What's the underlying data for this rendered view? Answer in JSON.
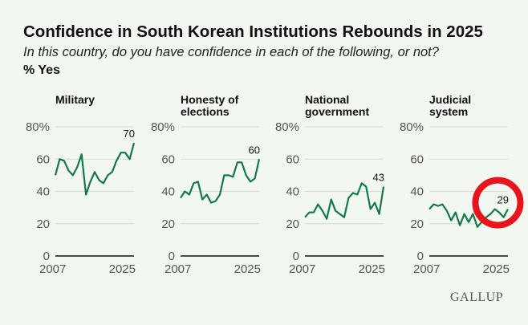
{
  "title": "Confidence in South Korean Institutions Rebounds in 2025",
  "subtitle": "In this country, do you have confidence in each of the following, or not?",
  "unit_label": "% Yes",
  "logo": "GALLUP",
  "colors": {
    "line": "#127a44",
    "background": "#f3f7f1",
    "annotation": "#e8141c"
  },
  "chart_data": [
    {
      "type": "line",
      "title": [
        "Military"
      ],
      "x": [
        2007,
        2008,
        2009,
        2010,
        2011,
        2012,
        2013,
        2014,
        2015,
        2016,
        2017,
        2018,
        2019,
        2020,
        2021,
        2022,
        2023,
        2024,
        2025
      ],
      "values": [
        50,
        60,
        59,
        53,
        50,
        55,
        63,
        38,
        46,
        52,
        47,
        45,
        50,
        52,
        59,
        64,
        64,
        60,
        70
      ],
      "end_label": "70",
      "ylim": [
        0,
        80
      ],
      "yticks": [
        "0",
        "20",
        "40",
        "60",
        "80%"
      ],
      "xticks": [
        "2007",
        "2025"
      ],
      "grid": true
    },
    {
      "type": "line",
      "title": [
        "Honesty of",
        "elections"
      ],
      "x": [
        2007,
        2008,
        2009,
        2010,
        2011,
        2012,
        2013,
        2014,
        2015,
        2016,
        2017,
        2018,
        2019,
        2020,
        2021,
        2022,
        2023,
        2024,
        2025
      ],
      "values": [
        36,
        40,
        38,
        45,
        46,
        35,
        38,
        33,
        34,
        38,
        50,
        50,
        49,
        58,
        58,
        50,
        46,
        48,
        60
      ],
      "end_label": "60",
      "ylim": [
        0,
        80
      ],
      "yticks": [
        "0",
        "20",
        "40",
        "60",
        "80%"
      ],
      "xticks": [
        "2007",
        "2025"
      ],
      "grid": true
    },
    {
      "type": "line",
      "title": [
        "National",
        "government"
      ],
      "x": [
        2007,
        2008,
        2009,
        2010,
        2011,
        2012,
        2013,
        2014,
        2015,
        2016,
        2017,
        2018,
        2019,
        2020,
        2021,
        2022,
        2023,
        2024,
        2025
      ],
      "values": [
        24,
        27,
        27,
        32,
        28,
        23,
        35,
        28,
        26,
        24,
        36,
        39,
        38,
        45,
        43,
        29,
        33,
        26,
        43
      ],
      "end_label": "43",
      "ylim": [
        0,
        80
      ],
      "yticks": [
        "0",
        "20",
        "40",
        "60",
        "80%"
      ],
      "xticks": [
        "2007",
        "2025"
      ],
      "grid": true
    },
    {
      "type": "line",
      "title": [
        "Judicial",
        "system"
      ],
      "x": [
        2007,
        2008,
        2009,
        2010,
        2011,
        2012,
        2013,
        2014,
        2015,
        2016,
        2017,
        2018,
        2019,
        2020,
        2021,
        2022,
        2023,
        2024,
        2025
      ],
      "values": [
        29,
        32,
        31,
        32,
        28,
        22,
        27,
        19,
        26,
        21,
        26,
        18,
        21,
        24,
        26,
        29,
        27,
        24,
        29
      ],
      "end_label": "29",
      "ylim": [
        0,
        80
      ],
      "yticks": [
        "0",
        "20",
        "40",
        "60",
        "80%"
      ],
      "xticks": [
        "2007",
        "2025"
      ],
      "grid": true,
      "annotation": "red-circle-highlight"
    }
  ]
}
